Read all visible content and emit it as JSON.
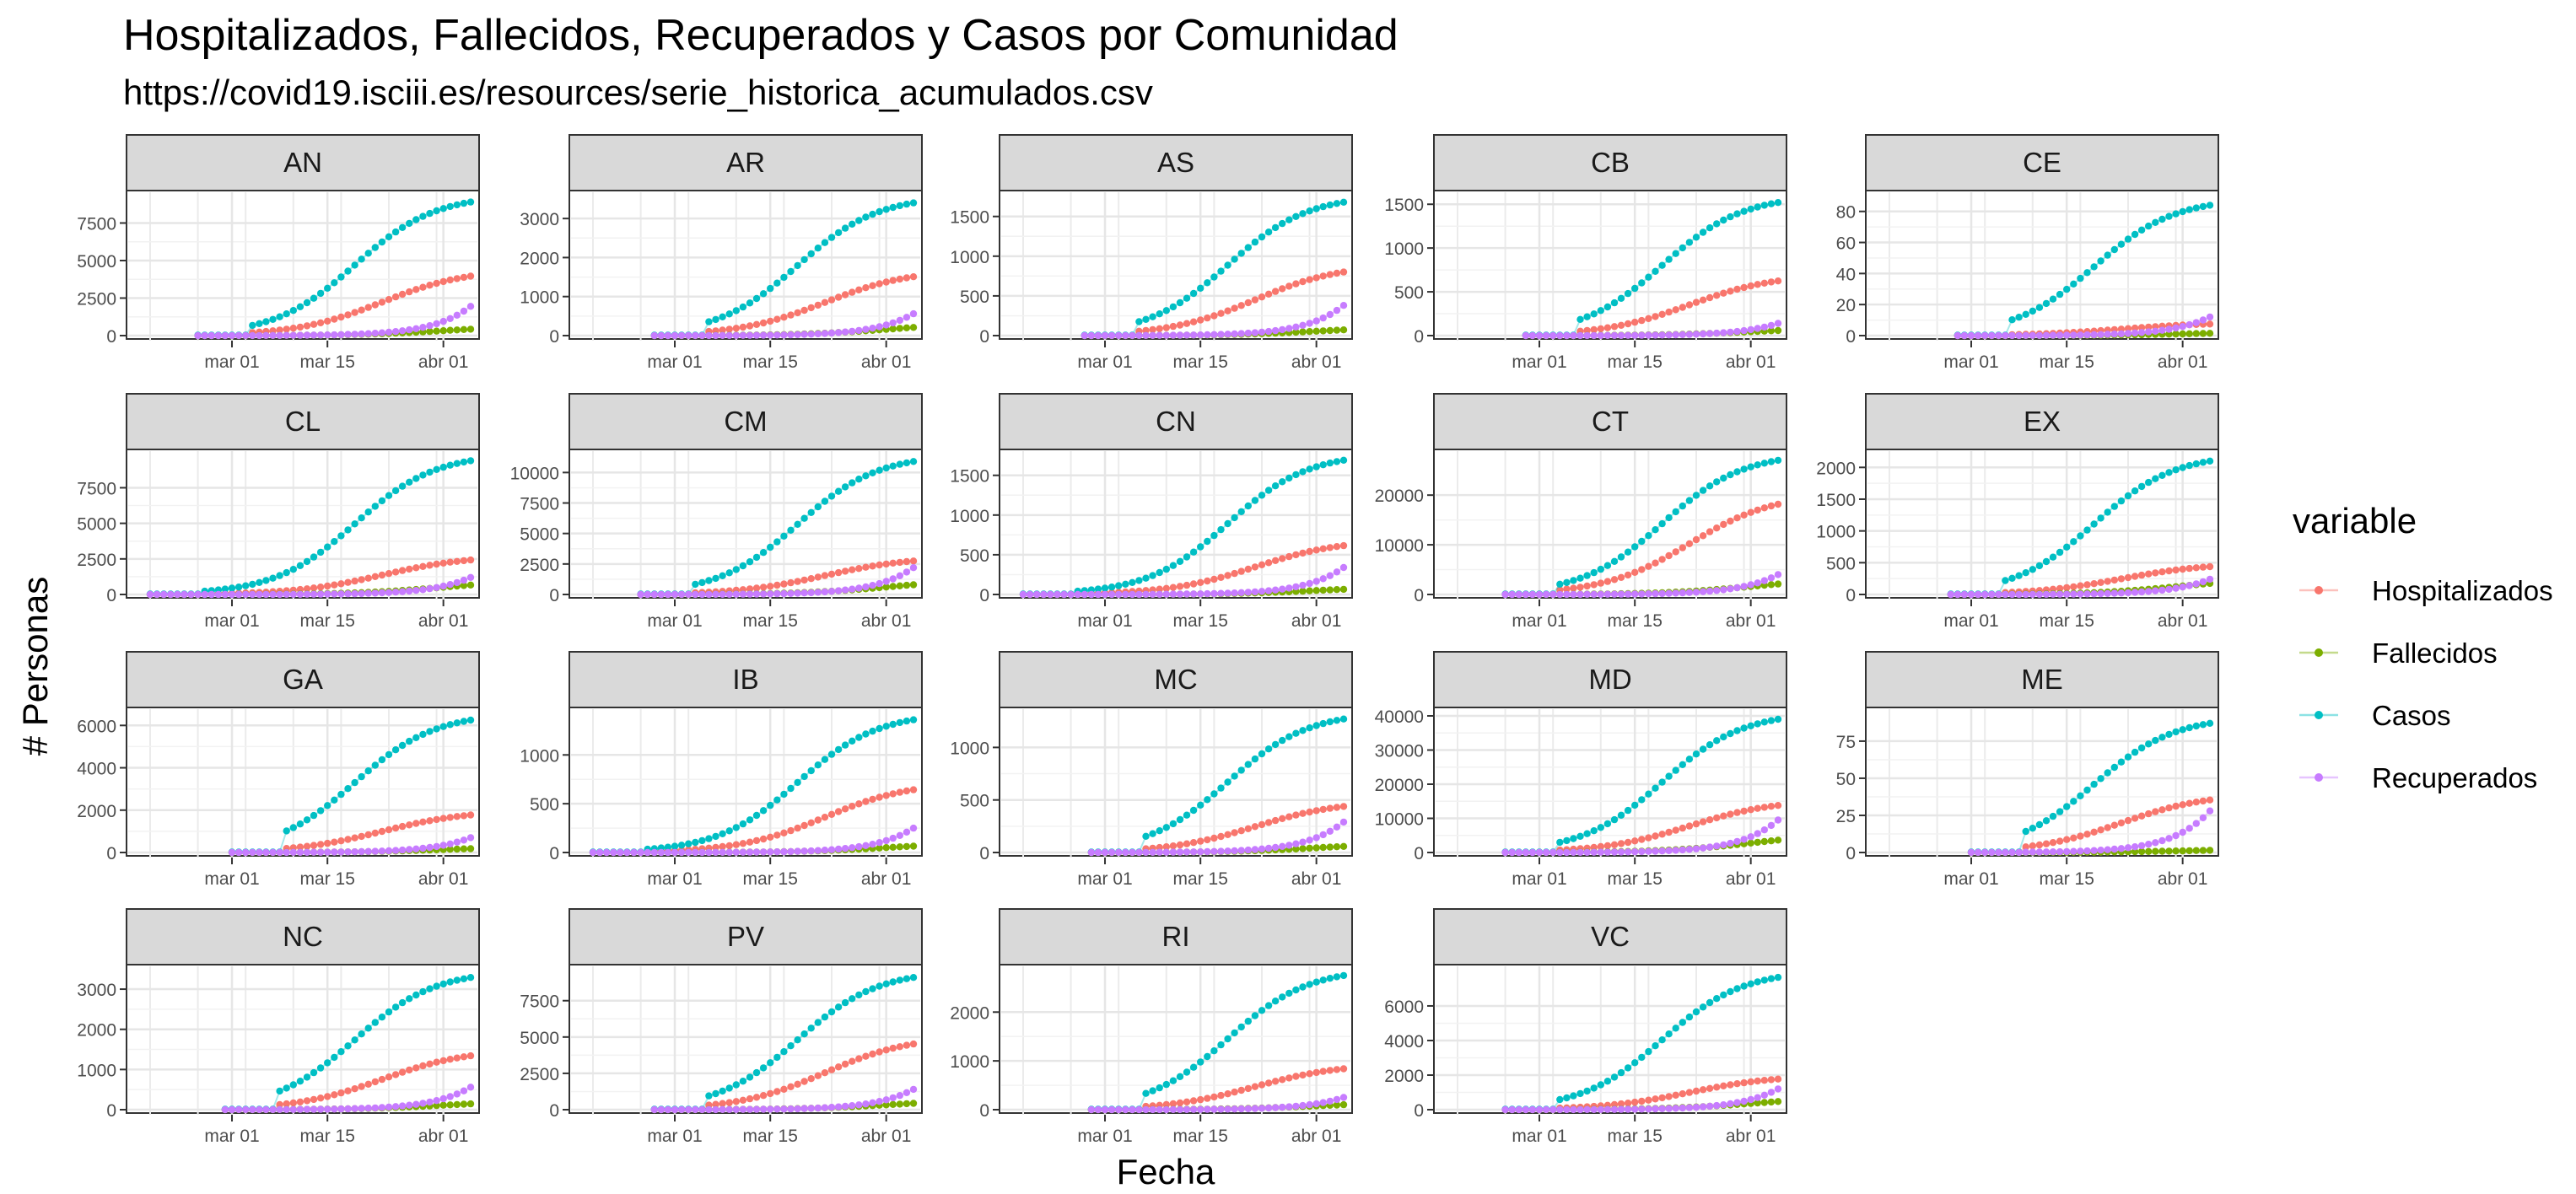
{
  "title": "Hospitalizados, Fallecidos, Recuperados y Casos por Comunidad",
  "subtitle": "https://covid19.isciii.es/resources/serie_historica_acumulados.csv",
  "chart_data": {
    "type": "scatter",
    "facet_variable": "Comunidad",
    "xlabel": "Fecha",
    "ylabel": "# Personas",
    "x_ticks": [
      "mar 01",
      "mar 15",
      "abr 01"
    ],
    "x_range": [
      "2020-02-18",
      "2020-04-05"
    ],
    "grid": true,
    "legend": {
      "title": "variable",
      "position": "right",
      "entries": [
        {
          "name": "Hospitalizados",
          "color": "#F8766D"
        },
        {
          "name": "Fallecidos",
          "color": "#7CAE00"
        },
        {
          "name": "Casos",
          "color": "#00BFC4"
        },
        {
          "name": "Recuperados",
          "color": "#C77CFF"
        }
      ]
    },
    "facets": [
      {
        "label": "AN",
        "yticks": [
          0,
          2500,
          5000,
          7500
        ],
        "ylim": [
          0,
          9100
        ],
        "start": "2020-02-25",
        "casos": 8900,
        "hosp": 4250,
        "fall": 590,
        "rec": 1950
      },
      {
        "label": "AR",
        "yticks": [
          0,
          1000,
          2000,
          3000
        ],
        "ylim": [
          0,
          3500
        ],
        "start": "2020-02-27",
        "casos": 3400,
        "hosp": 1620,
        "fall": 290,
        "rec": 560
      },
      {
        "label": "AS",
        "yticks": [
          0,
          500,
          1000,
          1500
        ],
        "ylim": [
          0,
          1720
        ],
        "start": "2020-02-27",
        "casos": 1680,
        "hosp": 860,
        "fall": 100,
        "rec": 380
      },
      {
        "label": "CB",
        "yticks": [
          0,
          500,
          1000,
          1500
        ],
        "ylim": [
          0,
          1560
        ],
        "start": "2020-02-28",
        "casos": 1520,
        "hosp": 670,
        "fall": 80,
        "rec": 140
      },
      {
        "label": "CE",
        "yticks": [
          0,
          20,
          40,
          60,
          80
        ],
        "ylim": [
          0,
          88
        ],
        "start": "2020-02-28",
        "casos": 84,
        "hosp": 8,
        "fall": 2,
        "rec": 12
      },
      {
        "label": "CL",
        "yticks": [
          0,
          2500,
          5000,
          7500
        ],
        "ylim": [
          0,
          9600
        ],
        "start": "2020-02-18",
        "casos": 9400,
        "hosp": 2600,
        "fall": 920,
        "rec": 1200
      },
      {
        "label": "CM",
        "yticks": [
          0,
          2500,
          5000,
          7500,
          10000
        ],
        "ylim": [
          0,
          11200
        ],
        "start": "2020-02-25",
        "casos": 10900,
        "hosp": 2950,
        "fall": 1100,
        "rec": 2200
      },
      {
        "label": "CN",
        "yticks": [
          0,
          500,
          1000,
          1500
        ],
        "ylim": [
          0,
          1720
        ],
        "start": "2020-02-18",
        "casos": 1690,
        "hosp": 660,
        "fall": 90,
        "rec": 340
      },
      {
        "label": "CT",
        "yticks": [
          0,
          10000,
          20000
        ],
        "ylim": [
          0,
          27500
        ],
        "start": "2020-02-25",
        "casos": 27000,
        "hosp": 19500,
        "fall": 2900,
        "rec": 4000
      },
      {
        "label": "EX",
        "yticks": [
          0,
          500,
          1000,
          1500,
          2000
        ],
        "ylim": [
          0,
          2150
        ],
        "start": "2020-02-27",
        "casos": 2100,
        "hosp": 470,
        "fall": 240,
        "rec": 240
      },
      {
        "label": "GA",
        "yticks": [
          0,
          2000,
          4000,
          6000
        ],
        "ylim": [
          0,
          6450
        ],
        "start": "2020-03-01",
        "casos": 6250,
        "hosp": 1900,
        "fall": 250,
        "rec": 700
      },
      {
        "label": "IB",
        "yticks": [
          0,
          500,
          1000
        ],
        "ylim": [
          0,
          1400
        ],
        "start": "2020-02-18",
        "casos": 1360,
        "hosp": 690,
        "fall": 90,
        "rec": 250
      },
      {
        "label": "MC",
        "yticks": [
          0,
          500,
          1000
        ],
        "ylim": [
          0,
          1300
        ],
        "start": "2020-02-28",
        "casos": 1270,
        "hosp": 470,
        "fall": 80,
        "rec": 290
      },
      {
        "label": "MD",
        "yticks": [
          0,
          10000,
          20000,
          30000,
          40000
        ],
        "ylim": [
          0,
          40000
        ],
        "start": "2020-02-25",
        "casos": 39000,
        "hosp": 14800,
        "fall": 5000,
        "rec": 9500
      },
      {
        "label": "ME",
        "yticks": [
          0,
          25,
          50,
          75
        ],
        "ylim": [
          0,
          92
        ],
        "start": "2020-03-01",
        "casos": 87,
        "hosp": 38,
        "fall": 2,
        "rec": 28
      },
      {
        "label": "NC",
        "yticks": [
          0,
          1000,
          2000,
          3000
        ],
        "ylim": [
          0,
          3400
        ],
        "start": "2020-02-29",
        "casos": 3290,
        "hosp": 1440,
        "fall": 200,
        "rec": 560
      },
      {
        "label": "PV",
        "yticks": [
          0,
          2500,
          5000,
          7500
        ],
        "ylim": [
          0,
          9400
        ],
        "start": "2020-02-27",
        "casos": 9100,
        "hosp": 4850,
        "fall": 600,
        "rec": 1400
      },
      {
        "label": "RI",
        "yticks": [
          0,
          1000,
          2000
        ],
        "ylim": [
          0,
          2800
        ],
        "start": "2020-02-28",
        "casos": 2750,
        "hosp": 900,
        "fall": 140,
        "rec": 250
      },
      {
        "label": "VC",
        "yticks": [
          0,
          2000,
          4000,
          6000
        ],
        "ylim": [
          0,
          7900
        ],
        "start": "2020-02-25",
        "casos": 7650,
        "hosp": 1900,
        "fall": 650,
        "rec": 1200
      }
    ]
  }
}
